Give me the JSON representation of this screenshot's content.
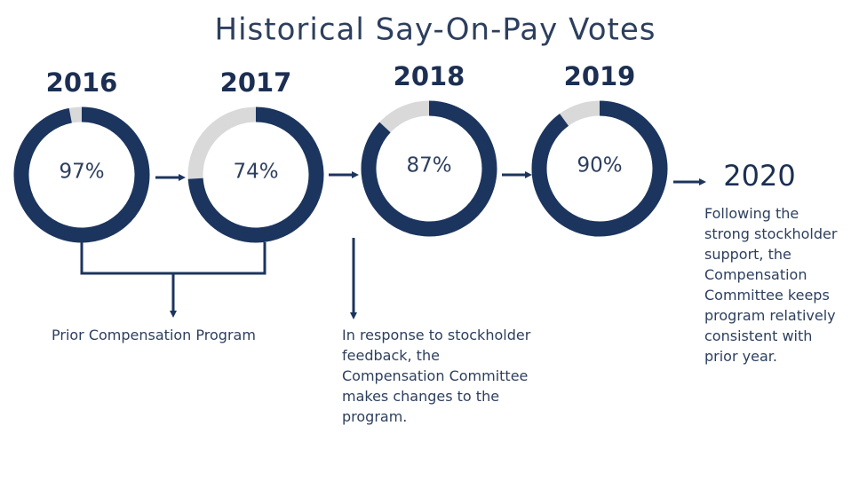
{
  "chart_data": {
    "type": "donut",
    "title": "Historical Say-On-Pay Votes",
    "categories": [
      "2016",
      "2017",
      "2018",
      "2019"
    ],
    "values": [
      97,
      74,
      87,
      90
    ],
    "value_labels": [
      "97%",
      "74%",
      "87%",
      "90%"
    ],
    "color": "#1c355e",
    "track_color": "#d9d9d9",
    "next_year": "2020",
    "annotations": {
      "prior": "Prior Compensation Program",
      "response": "In response to stockholder feedback, the Compensation Committee makes changes to the program.",
      "outlook": "Following the strong stockholder support, the Compensation Committee keeps program relatively consistent with prior year."
    }
  }
}
